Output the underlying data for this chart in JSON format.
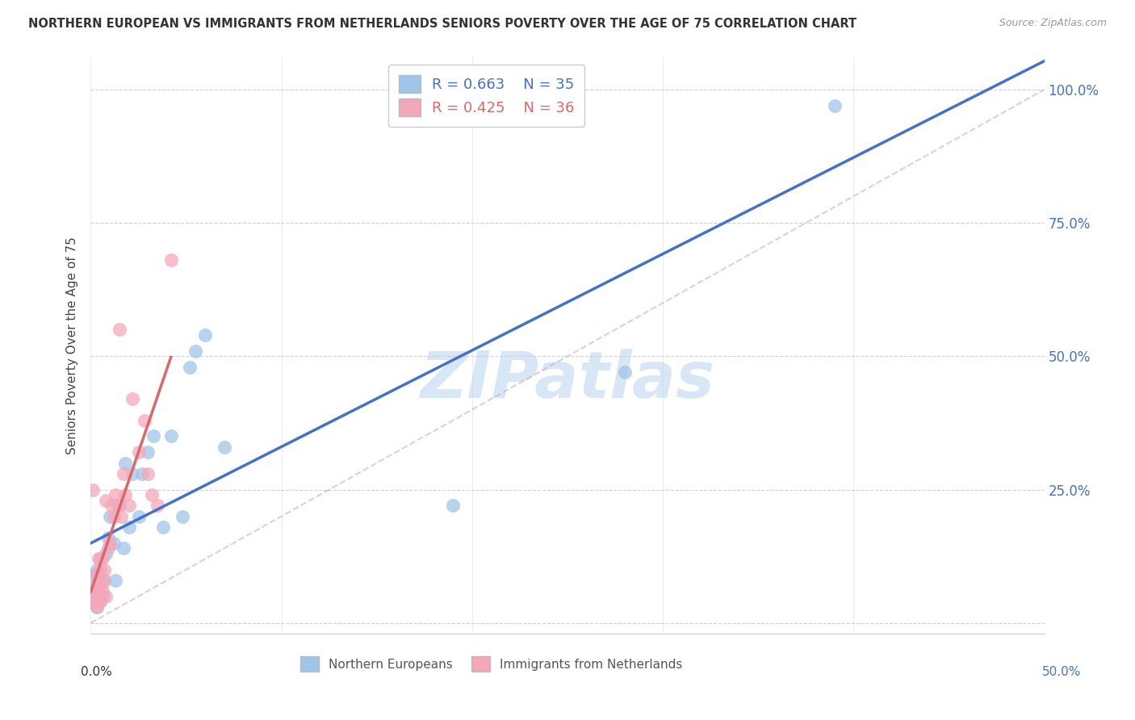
{
  "title": "NORTHERN EUROPEAN VS IMMIGRANTS FROM NETHERLANDS SENIORS POVERTY OVER THE AGE OF 75 CORRELATION CHART",
  "source": "Source: ZipAtlas.com",
  "ylabel": "Seniors Poverty Over the Age of 75",
  "legend_label_1": "Northern Europeans",
  "legend_label_2": "Immigrants from Netherlands",
  "R1": 0.663,
  "N1": 35,
  "R2": 0.425,
  "N2": 36,
  "color1": "#9fc5e8",
  "color2": "#f4a7b9",
  "line1_color": "#4472c4",
  "line2_color": "#e06666",
  "diagonal_color": "#d0b0b0",
  "watermark_color": "#b8d4ef",
  "xlim": [
    0.0,
    0.5
  ],
  "ylim": [
    -0.02,
    1.06
  ],
  "right_ytick_labels": [
    "25.0%",
    "50.0%",
    "75.0%",
    "100.0%"
  ],
  "right_ytick_vals": [
    0.25,
    0.5,
    0.75,
    1.0
  ],
  "xtick_labels_bottom": [
    "0.0%",
    "50.0%"
  ],
  "xtick_vals_bottom": [
    0.0,
    0.5
  ],
  "ne_x": [
    0.001,
    0.001,
    0.002,
    0.002,
    0.003,
    0.003,
    0.004,
    0.005,
    0.005,
    0.006,
    0.007,
    0.008,
    0.009,
    0.01,
    0.012,
    0.013,
    0.015,
    0.017,
    0.018,
    0.02,
    0.022,
    0.025,
    0.027,
    0.03,
    0.033,
    0.038,
    0.042,
    0.048,
    0.052,
    0.055,
    0.06,
    0.07,
    0.19,
    0.28,
    0.39
  ],
  "ne_y": [
    0.04,
    0.07,
    0.05,
    0.09,
    0.03,
    0.1,
    0.08,
    0.04,
    0.12,
    0.05,
    0.08,
    0.13,
    0.16,
    0.2,
    0.15,
    0.08,
    0.22,
    0.14,
    0.3,
    0.18,
    0.28,
    0.2,
    0.28,
    0.32,
    0.35,
    0.18,
    0.35,
    0.2,
    0.48,
    0.51,
    0.54,
    0.33,
    0.22,
    0.47,
    0.97
  ],
  "nl_x": [
    0.001,
    0.001,
    0.002,
    0.002,
    0.003,
    0.003,
    0.003,
    0.004,
    0.004,
    0.005,
    0.005,
    0.005,
    0.006,
    0.006,
    0.007,
    0.007,
    0.008,
    0.008,
    0.009,
    0.01,
    0.011,
    0.012,
    0.013,
    0.014,
    0.015,
    0.016,
    0.017,
    0.018,
    0.02,
    0.022,
    0.025,
    0.028,
    0.03,
    0.032,
    0.035,
    0.042
  ],
  "nl_y": [
    0.04,
    0.25,
    0.05,
    0.06,
    0.03,
    0.07,
    0.09,
    0.05,
    0.12,
    0.04,
    0.07,
    0.1,
    0.06,
    0.12,
    0.08,
    0.1,
    0.05,
    0.23,
    0.14,
    0.15,
    0.22,
    0.2,
    0.24,
    0.22,
    0.55,
    0.2,
    0.28,
    0.24,
    0.22,
    0.42,
    0.32,
    0.38,
    0.28,
    0.24,
    0.22,
    0.68
  ],
  "grid_ytick_vals": [
    0.0,
    0.25,
    0.5,
    0.75,
    1.0
  ],
  "xtick_minor_vals": [
    0.0,
    0.1,
    0.2,
    0.3,
    0.4,
    0.5
  ]
}
